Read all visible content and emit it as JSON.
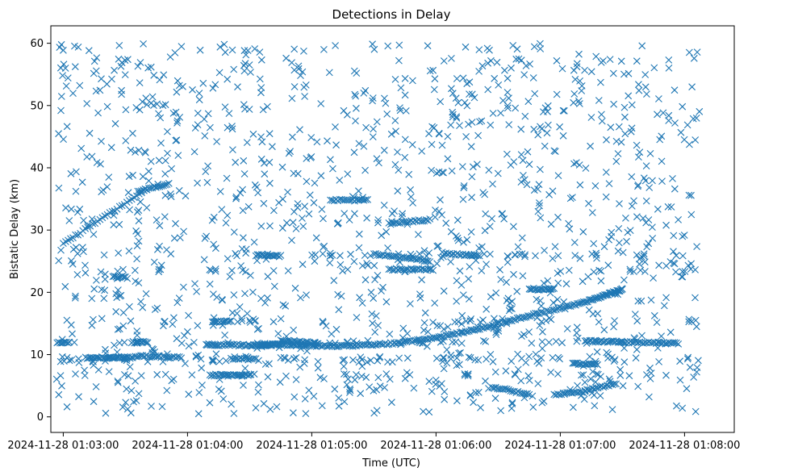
{
  "chart_data": {
    "type": "scatter",
    "title": "Detections in Delay",
    "xlabel": "Time (UTC)",
    "ylabel": "Bistatic Delay (km)",
    "marker": "x",
    "color": "#1f77b4",
    "grid": false,
    "legend": "none",
    "x_unit": "minutes after 2024-11-28 01:03:00",
    "xlim": [
      -0.1,
      5.4
    ],
    "ylim": [
      -2.5,
      62.8
    ],
    "x_ticks": [
      0,
      1,
      2,
      3,
      4,
      5
    ],
    "x_tick_labels": [
      "2024-11-28 01:03:00",
      "2024-11-28 01:04:00",
      "2024-11-28 01:05:00",
      "2024-11-28 01:06:00",
      "2024-11-28 01:07:00",
      "2024-11-28 01:08:00"
    ],
    "y_ticks": [
      0,
      10,
      20,
      30,
      40,
      50,
      60
    ],
    "y_tick_labels": [
      "0",
      "10",
      "20",
      "30",
      "40",
      "50",
      "60"
    ],
    "series": [
      {
        "kind": "tracks",
        "tracks": [
          {
            "x0": 0.0,
            "x1": 0.65,
            "y0": 27.8,
            "y1": 36.3,
            "step": 0.02
          },
          {
            "x0": 1.15,
            "x1": 1.75,
            "y0": 11.6,
            "y1": 11.6,
            "step": 0.012,
            "curve": "spline",
            "ctrl": [
              [
                1.15,
                11.6
              ],
              [
                1.55,
                11.5
              ],
              [
                1.75,
                11.6
              ],
              [
                2.2,
                11.4
              ],
              [
                2.7,
                11.9
              ],
              [
                3.2,
                13.5
              ],
              [
                3.7,
                16.0
              ],
              [
                4.2,
                18.5
              ],
              [
                4.5,
                20.5
              ]
            ]
          },
          {
            "x0": -0.05,
            "x1": 0.05,
            "y0": 12.0,
            "y1": 12.0,
            "step": 0.012
          },
          {
            "x0": 0.18,
            "x1": 0.55,
            "y0": 9.5,
            "y1": 9.5,
            "step": 0.012
          },
          {
            "x0": 0.4,
            "x1": 0.5,
            "y0": 22.5,
            "y1": 22.5,
            "step": 0.012
          },
          {
            "x0": 0.55,
            "x1": 0.68,
            "y0": 12.0,
            "y1": 12.0,
            "step": 0.012
          },
          {
            "x0": 0.58,
            "x1": 0.95,
            "y0": 9.8,
            "y1": 9.5,
            "step": 0.015
          },
          {
            "x0": 0.6,
            "x1": 0.85,
            "y0": 36.2,
            "y1": 37.5,
            "step": 0.015
          },
          {
            "x0": 1.18,
            "x1": 1.5,
            "y0": 6.7,
            "y1": 6.7,
            "step": 0.012
          },
          {
            "x0": 1.2,
            "x1": 1.35,
            "y0": 15.3,
            "y1": 15.3,
            "step": 0.012
          },
          {
            "x0": 1.35,
            "x1": 1.55,
            "y0": 9.3,
            "y1": 9.3,
            "step": 0.015
          },
          {
            "x0": 1.55,
            "x1": 1.75,
            "y0": 26.0,
            "y1": 25.8,
            "step": 0.012
          },
          {
            "x0": 1.75,
            "x1": 2.05,
            "y0": 12.3,
            "y1": 11.8,
            "step": 0.012
          },
          {
            "x0": 2.15,
            "x1": 2.45,
            "y0": 34.8,
            "y1": 34.8,
            "step": 0.015
          },
          {
            "x0": 2.5,
            "x1": 2.95,
            "y0": 26.2,
            "y1": 25.0,
            "step": 0.015
          },
          {
            "x0": 2.62,
            "x1": 2.95,
            "y0": 31.0,
            "y1": 31.7,
            "step": 0.015
          },
          {
            "x0": 2.62,
            "x1": 2.95,
            "y0": 23.7,
            "y1": 23.7,
            "step": 0.015
          },
          {
            "x0": 3.05,
            "x1": 3.35,
            "y0": 26.3,
            "y1": 25.8,
            "step": 0.015
          },
          {
            "x0": 3.45,
            "x1": 3.75,
            "y0": 4.8,
            "y1": 3.6,
            "step": 0.015
          },
          {
            "x0": 3.95,
            "x1": 4.2,
            "y0": 3.6,
            "y1": 4.0,
            "step": 0.015
          },
          {
            "x0": 4.1,
            "x1": 4.3,
            "y0": 8.5,
            "y1": 8.5,
            "step": 0.012
          },
          {
            "x0": 4.2,
            "x1": 4.45,
            "y0": 4.3,
            "y1": 5.3,
            "step": 0.015
          },
          {
            "x0": 4.2,
            "x1": 4.55,
            "y0": 12.2,
            "y1": 12.0,
            "step": 0.012
          },
          {
            "x0": 4.55,
            "x1": 4.95,
            "y0": 12.0,
            "y1": 11.8,
            "step": 0.015
          },
          {
            "x0": 3.75,
            "x1": 3.95,
            "y0": 20.5,
            "y1": 20.5,
            "step": 0.012
          }
        ]
      },
      {
        "kind": "noise",
        "count": 1500,
        "seed": 20241128,
        "x_range": [
          -0.06,
          5.12
        ],
        "y_range": [
          0.5,
          60.0
        ],
        "rows": [
          9.5,
          12.0,
          23.5,
          26.0,
          9.0,
          15.3,
          6.7
        ],
        "row_fraction": 0.15
      }
    ]
  }
}
